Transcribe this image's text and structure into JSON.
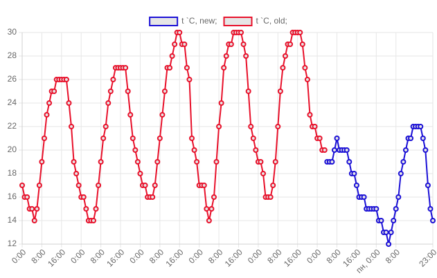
{
  "chart_data": {
    "type": "line",
    "categories": [
      "0:00",
      null,
      null,
      null,
      null,
      null,
      null,
      null,
      "8:00",
      null,
      null,
      null,
      null,
      null,
      null,
      null,
      "16:00",
      null,
      null,
      null,
      null,
      null,
      null,
      null,
      "0:00",
      null,
      null,
      null,
      null,
      null,
      null,
      null,
      "8:00",
      null,
      null,
      null,
      null,
      null,
      null,
      null,
      "16:00",
      null,
      null,
      null,
      null,
      null,
      null,
      null,
      "0:00",
      null,
      null,
      null,
      null,
      null,
      null,
      null,
      "8:00",
      null,
      null,
      null,
      null,
      null,
      null,
      null,
      "16:00",
      null,
      null,
      null,
      null,
      null,
      null,
      null,
      "0:00",
      null,
      null,
      null,
      null,
      null,
      null,
      null,
      "8:00",
      null,
      null,
      null,
      null,
      null,
      null,
      null,
      "16:00",
      null,
      null,
      null,
      null,
      null,
      null,
      null,
      "0:00",
      null,
      null,
      null,
      null,
      null,
      null,
      null,
      "8:00",
      null,
      null,
      null,
      null,
      null,
      null,
      null,
      "16:00",
      null,
      null,
      null,
      null,
      null,
      null,
      null,
      "0:00",
      null,
      null,
      null,
      null,
      null,
      null,
      null,
      "8:00",
      null,
      null,
      null,
      null,
      null,
      null,
      null,
      "16:00",
      null,
      null,
      null,
      null,
      null,
      null,
      null,
      "пн, 0:00",
      null,
      null,
      null,
      null,
      null,
      null,
      null,
      "8:00",
      null,
      null,
      null,
      null,
      null,
      null,
      null,
      null,
      null,
      null,
      null,
      null,
      null,
      null,
      "23:00"
    ],
    "series": [
      {
        "name": "t `C, new;",
        "color": "#1a0fd6",
        "values": [
          null,
          null,
          null,
          null,
          null,
          null,
          null,
          null,
          null,
          null,
          null,
          null,
          null,
          null,
          null,
          null,
          null,
          null,
          null,
          null,
          null,
          null,
          null,
          null,
          null,
          null,
          null,
          null,
          null,
          null,
          null,
          null,
          null,
          null,
          null,
          null,
          null,
          null,
          null,
          null,
          null,
          null,
          null,
          null,
          null,
          null,
          null,
          null,
          null,
          null,
          null,
          null,
          null,
          null,
          null,
          null,
          null,
          null,
          null,
          null,
          null,
          null,
          null,
          null,
          null,
          null,
          null,
          null,
          null,
          null,
          null,
          null,
          null,
          null,
          null,
          null,
          null,
          null,
          null,
          null,
          null,
          null,
          null,
          null,
          null,
          null,
          null,
          null,
          null,
          null,
          null,
          null,
          null,
          null,
          null,
          null,
          null,
          null,
          null,
          null,
          null,
          null,
          null,
          null,
          null,
          null,
          null,
          null,
          null,
          null,
          null,
          null,
          null,
          null,
          null,
          null,
          null,
          null,
          null,
          null,
          null,
          null,
          null,
          null,
          19,
          19,
          19,
          20,
          21,
          20,
          20,
          20,
          20,
          19,
          18,
          18,
          17,
          16,
          16,
          16,
          15,
          15,
          15,
          15,
          15,
          14,
          14,
          13,
          13,
          12,
          13,
          14,
          15,
          16,
          18,
          19,
          20,
          21,
          21,
          22,
          22,
          22,
          22,
          21,
          20,
          17,
          15,
          14
        ]
      },
      {
        "name": "t `C, old;",
        "color": "#e8102a",
        "values": [
          17,
          16,
          16,
          15,
          15,
          14,
          15,
          17,
          19,
          21,
          23,
          24,
          25,
          25,
          26,
          26,
          26,
          26,
          26,
          24,
          22,
          19,
          18,
          17,
          16,
          16,
          15,
          14,
          14,
          14,
          15,
          17,
          19,
          21,
          22,
          24,
          25,
          26,
          27,
          27,
          27,
          27,
          27,
          25,
          23,
          21,
          20,
          19,
          18,
          17,
          17,
          16,
          16,
          16,
          17,
          19,
          21,
          23,
          25,
          27,
          27,
          28,
          29,
          30,
          30,
          29,
          29,
          27,
          26,
          21,
          20,
          19,
          17,
          17,
          17,
          15,
          14,
          15,
          16,
          19,
          22,
          24,
          27,
          28,
          29,
          29,
          30,
          30,
          30,
          30,
          29,
          28,
          25,
          22,
          21,
          20,
          19,
          19,
          18,
          16,
          16,
          16,
          17,
          19,
          22,
          25,
          27,
          28,
          29,
          29,
          30,
          30,
          30,
          30,
          29,
          27,
          26,
          23,
          22,
          22,
          21,
          21,
          20,
          20,
          null,
          null,
          null,
          null,
          null,
          null,
          null,
          null,
          null,
          null,
          null,
          null,
          null,
          null,
          null,
          null,
          null,
          null,
          null,
          null,
          null,
          null,
          null,
          null,
          null,
          null,
          null,
          null,
          null,
          null,
          null,
          null,
          null,
          null,
          null,
          null,
          null,
          null,
          null,
          null,
          null,
          null,
          null,
          null
        ]
      }
    ],
    "ylim": [
      12,
      30
    ],
    "yticks": [
      12,
      14,
      16,
      18,
      20,
      22,
      24,
      26,
      28,
      30
    ],
    "grid": true,
    "legend": "top"
  }
}
